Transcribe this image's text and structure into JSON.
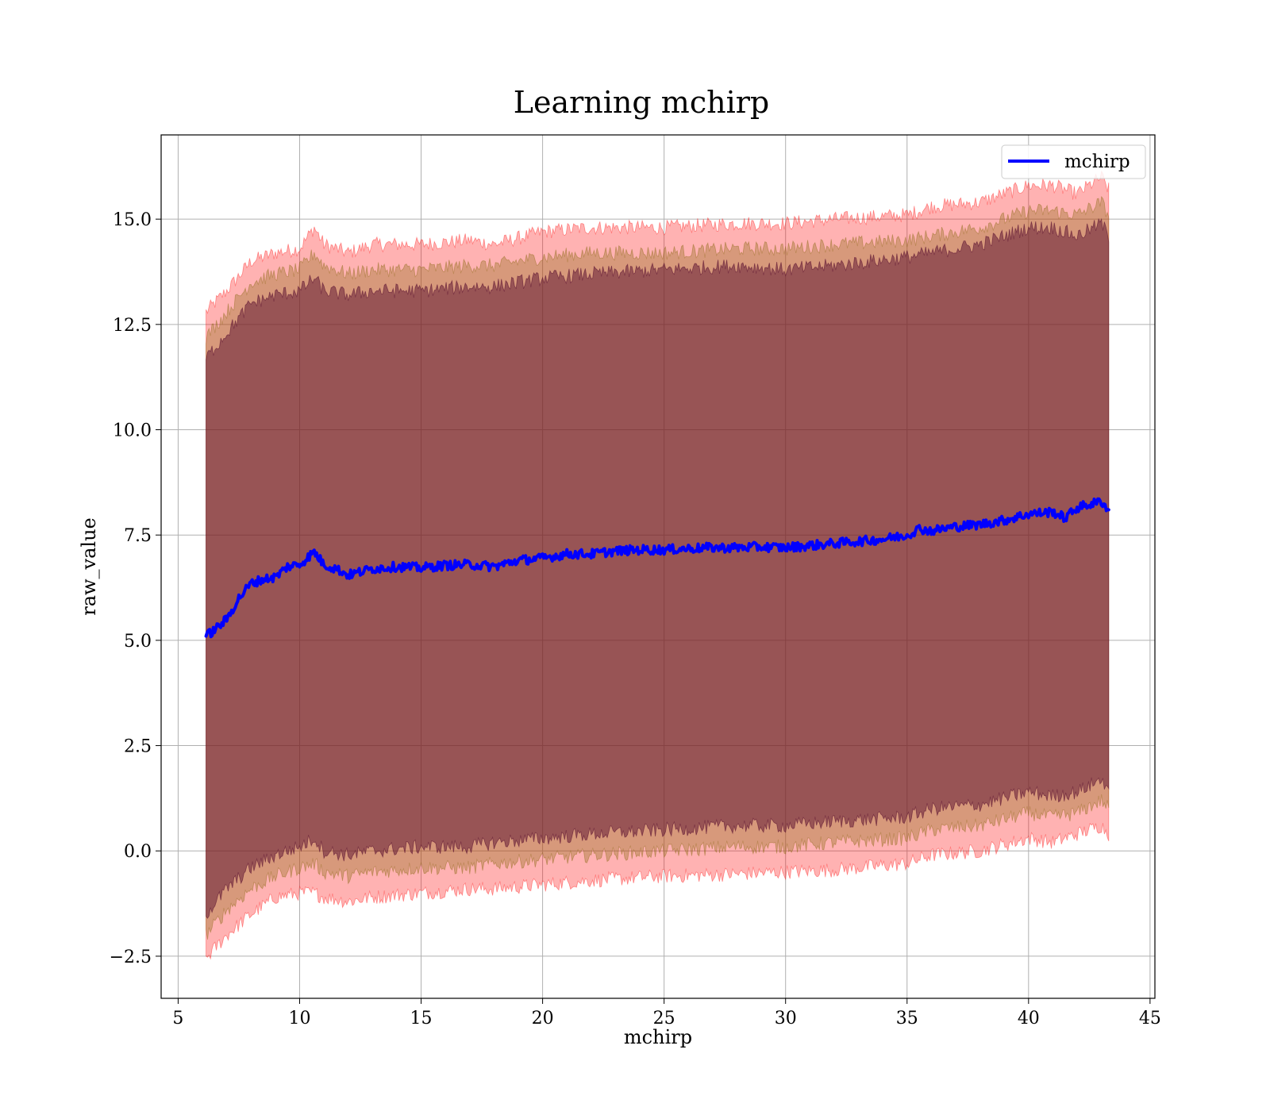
{
  "chart_data": {
    "type": "line",
    "title": "Learning mchirp",
    "xlabel": "mchirp",
    "ylabel": "raw_value",
    "xlim": [
      4.3,
      45.2
    ],
    "ylim": [
      -3.5,
      17.0
    ],
    "x_ticks": [
      5,
      10,
      15,
      20,
      25,
      30,
      35,
      40,
      45
    ],
    "x_tick_labels": [
      "5",
      "10",
      "15",
      "20",
      "25",
      "30",
      "35",
      "40",
      "45"
    ],
    "y_ticks": [
      -2.5,
      0.0,
      2.5,
      5.0,
      7.5,
      10.0,
      12.5,
      15.0
    ],
    "y_tick_labels": [
      "−2.5",
      "0.0",
      "2.5",
      "5.0",
      "7.5",
      "10.0",
      "12.5",
      "15.0"
    ],
    "grid": true,
    "legend_position": "upper-right",
    "series": [
      {
        "name": "mchirp",
        "color": "#0000ff",
        "x": [
          6.15,
          6.5,
          7.0,
          7.5,
          8.0,
          8.5,
          9.0,
          9.5,
          10.0,
          10.6,
          11.0,
          11.5,
          12.0,
          13.0,
          14.0,
          15.0,
          16.0,
          17.0,
          18.0,
          19.0,
          20.0,
          21.0,
          22.0,
          23.0,
          24.0,
          25.0,
          26.0,
          27.0,
          28.0,
          29.0,
          30.0,
          31.0,
          32.0,
          33.0,
          34.0,
          35.0,
          35.5,
          36.0,
          37.0,
          38.0,
          38.5,
          39.0,
          40.0,
          41.0,
          41.5,
          42.0,
          43.0,
          43.3
        ],
        "y": [
          5.1,
          5.25,
          5.5,
          6.0,
          6.35,
          6.45,
          6.5,
          6.75,
          6.8,
          7.1,
          6.8,
          6.7,
          6.55,
          6.7,
          6.75,
          6.72,
          6.78,
          6.8,
          6.75,
          6.9,
          6.95,
          7.05,
          7.05,
          7.12,
          7.15,
          7.15,
          7.18,
          7.2,
          7.2,
          7.22,
          7.2,
          7.25,
          7.3,
          7.35,
          7.4,
          7.5,
          7.65,
          7.6,
          7.7,
          7.75,
          7.8,
          7.85,
          8.0,
          8.05,
          7.9,
          8.15,
          8.3,
          8.1
        ]
      }
    ],
    "bands": [
      {
        "color": "#ff0000",
        "alpha": 0.3,
        "x": [
          6.15,
          7.0,
          8.0,
          9.0,
          10.0,
          10.6,
          11.0,
          12.0,
          13.0,
          15.0,
          17.0,
          18.0,
          20.0,
          22.0,
          25.0,
          28.0,
          30.0,
          32.0,
          35.0,
          36.0,
          38.0,
          40.0,
          41.0,
          42.0,
          43.0,
          43.3
        ],
        "upper": [
          12.8,
          13.3,
          14.0,
          14.2,
          14.3,
          14.8,
          14.4,
          14.2,
          14.4,
          14.4,
          14.5,
          14.4,
          14.7,
          14.8,
          14.8,
          14.9,
          14.9,
          15.0,
          15.1,
          15.3,
          15.4,
          15.8,
          15.8,
          15.6,
          16.0,
          15.7
        ],
        "lower": [
          -2.55,
          -2.0,
          -1.5,
          -1.1,
          -1.0,
          -1.0,
          -1.1,
          -1.2,
          -1.1,
          -1.0,
          -0.9,
          -0.9,
          -0.8,
          -0.7,
          -0.6,
          -0.55,
          -0.5,
          -0.45,
          -0.3,
          -0.1,
          0.0,
          0.3,
          0.2,
          0.4,
          0.6,
          0.4
        ]
      },
      {
        "color": "#8b6914",
        "alpha": 0.35,
        "x": [
          6.15,
          7.0,
          8.0,
          9.0,
          10.0,
          10.6,
          11.0,
          12.0,
          13.0,
          15.0,
          17.0,
          18.0,
          20.0,
          22.0,
          25.0,
          28.0,
          30.0,
          32.0,
          35.0,
          36.0,
          38.0,
          40.0,
          41.0,
          42.0,
          43.0,
          43.3
        ],
        "upper": [
          12.2,
          12.8,
          13.5,
          13.7,
          13.8,
          14.2,
          13.9,
          13.7,
          13.8,
          13.8,
          13.9,
          13.9,
          14.1,
          14.2,
          14.2,
          14.3,
          14.3,
          14.4,
          14.5,
          14.6,
          14.8,
          15.2,
          15.2,
          15.1,
          15.4,
          15.1
        ],
        "lower": [
          -2.0,
          -1.4,
          -0.9,
          -0.6,
          -0.4,
          -0.3,
          -0.5,
          -0.6,
          -0.5,
          -0.4,
          -0.4,
          -0.3,
          -0.2,
          -0.1,
          0.0,
          0.1,
          0.1,
          0.2,
          0.3,
          0.5,
          0.6,
          0.9,
          0.8,
          0.9,
          1.2,
          1.0
        ]
      },
      {
        "color": "#5a1030",
        "alpha": 0.5,
        "x": [
          6.15,
          7.0,
          8.0,
          9.0,
          10.0,
          10.6,
          11.0,
          12.0,
          13.0,
          15.0,
          17.0,
          18.0,
          20.0,
          22.0,
          25.0,
          28.0,
          30.0,
          32.0,
          35.0,
          36.0,
          38.0,
          40.0,
          41.0,
          42.0,
          43.0,
          43.3
        ],
        "upper": [
          11.7,
          12.3,
          13.0,
          13.2,
          13.3,
          13.6,
          13.3,
          13.2,
          13.3,
          13.3,
          13.4,
          13.4,
          13.6,
          13.7,
          13.8,
          13.9,
          13.8,
          13.9,
          14.1,
          14.2,
          14.4,
          14.8,
          14.8,
          14.6,
          14.9,
          14.6
        ],
        "lower": [
          -1.5,
          -0.9,
          -0.4,
          -0.1,
          0.1,
          0.3,
          0.0,
          -0.1,
          0.0,
          0.1,
          0.1,
          0.2,
          0.3,
          0.4,
          0.5,
          0.6,
          0.6,
          0.7,
          0.8,
          1.0,
          1.1,
          1.4,
          1.3,
          1.4,
          1.7,
          1.5
        ]
      }
    ]
  }
}
